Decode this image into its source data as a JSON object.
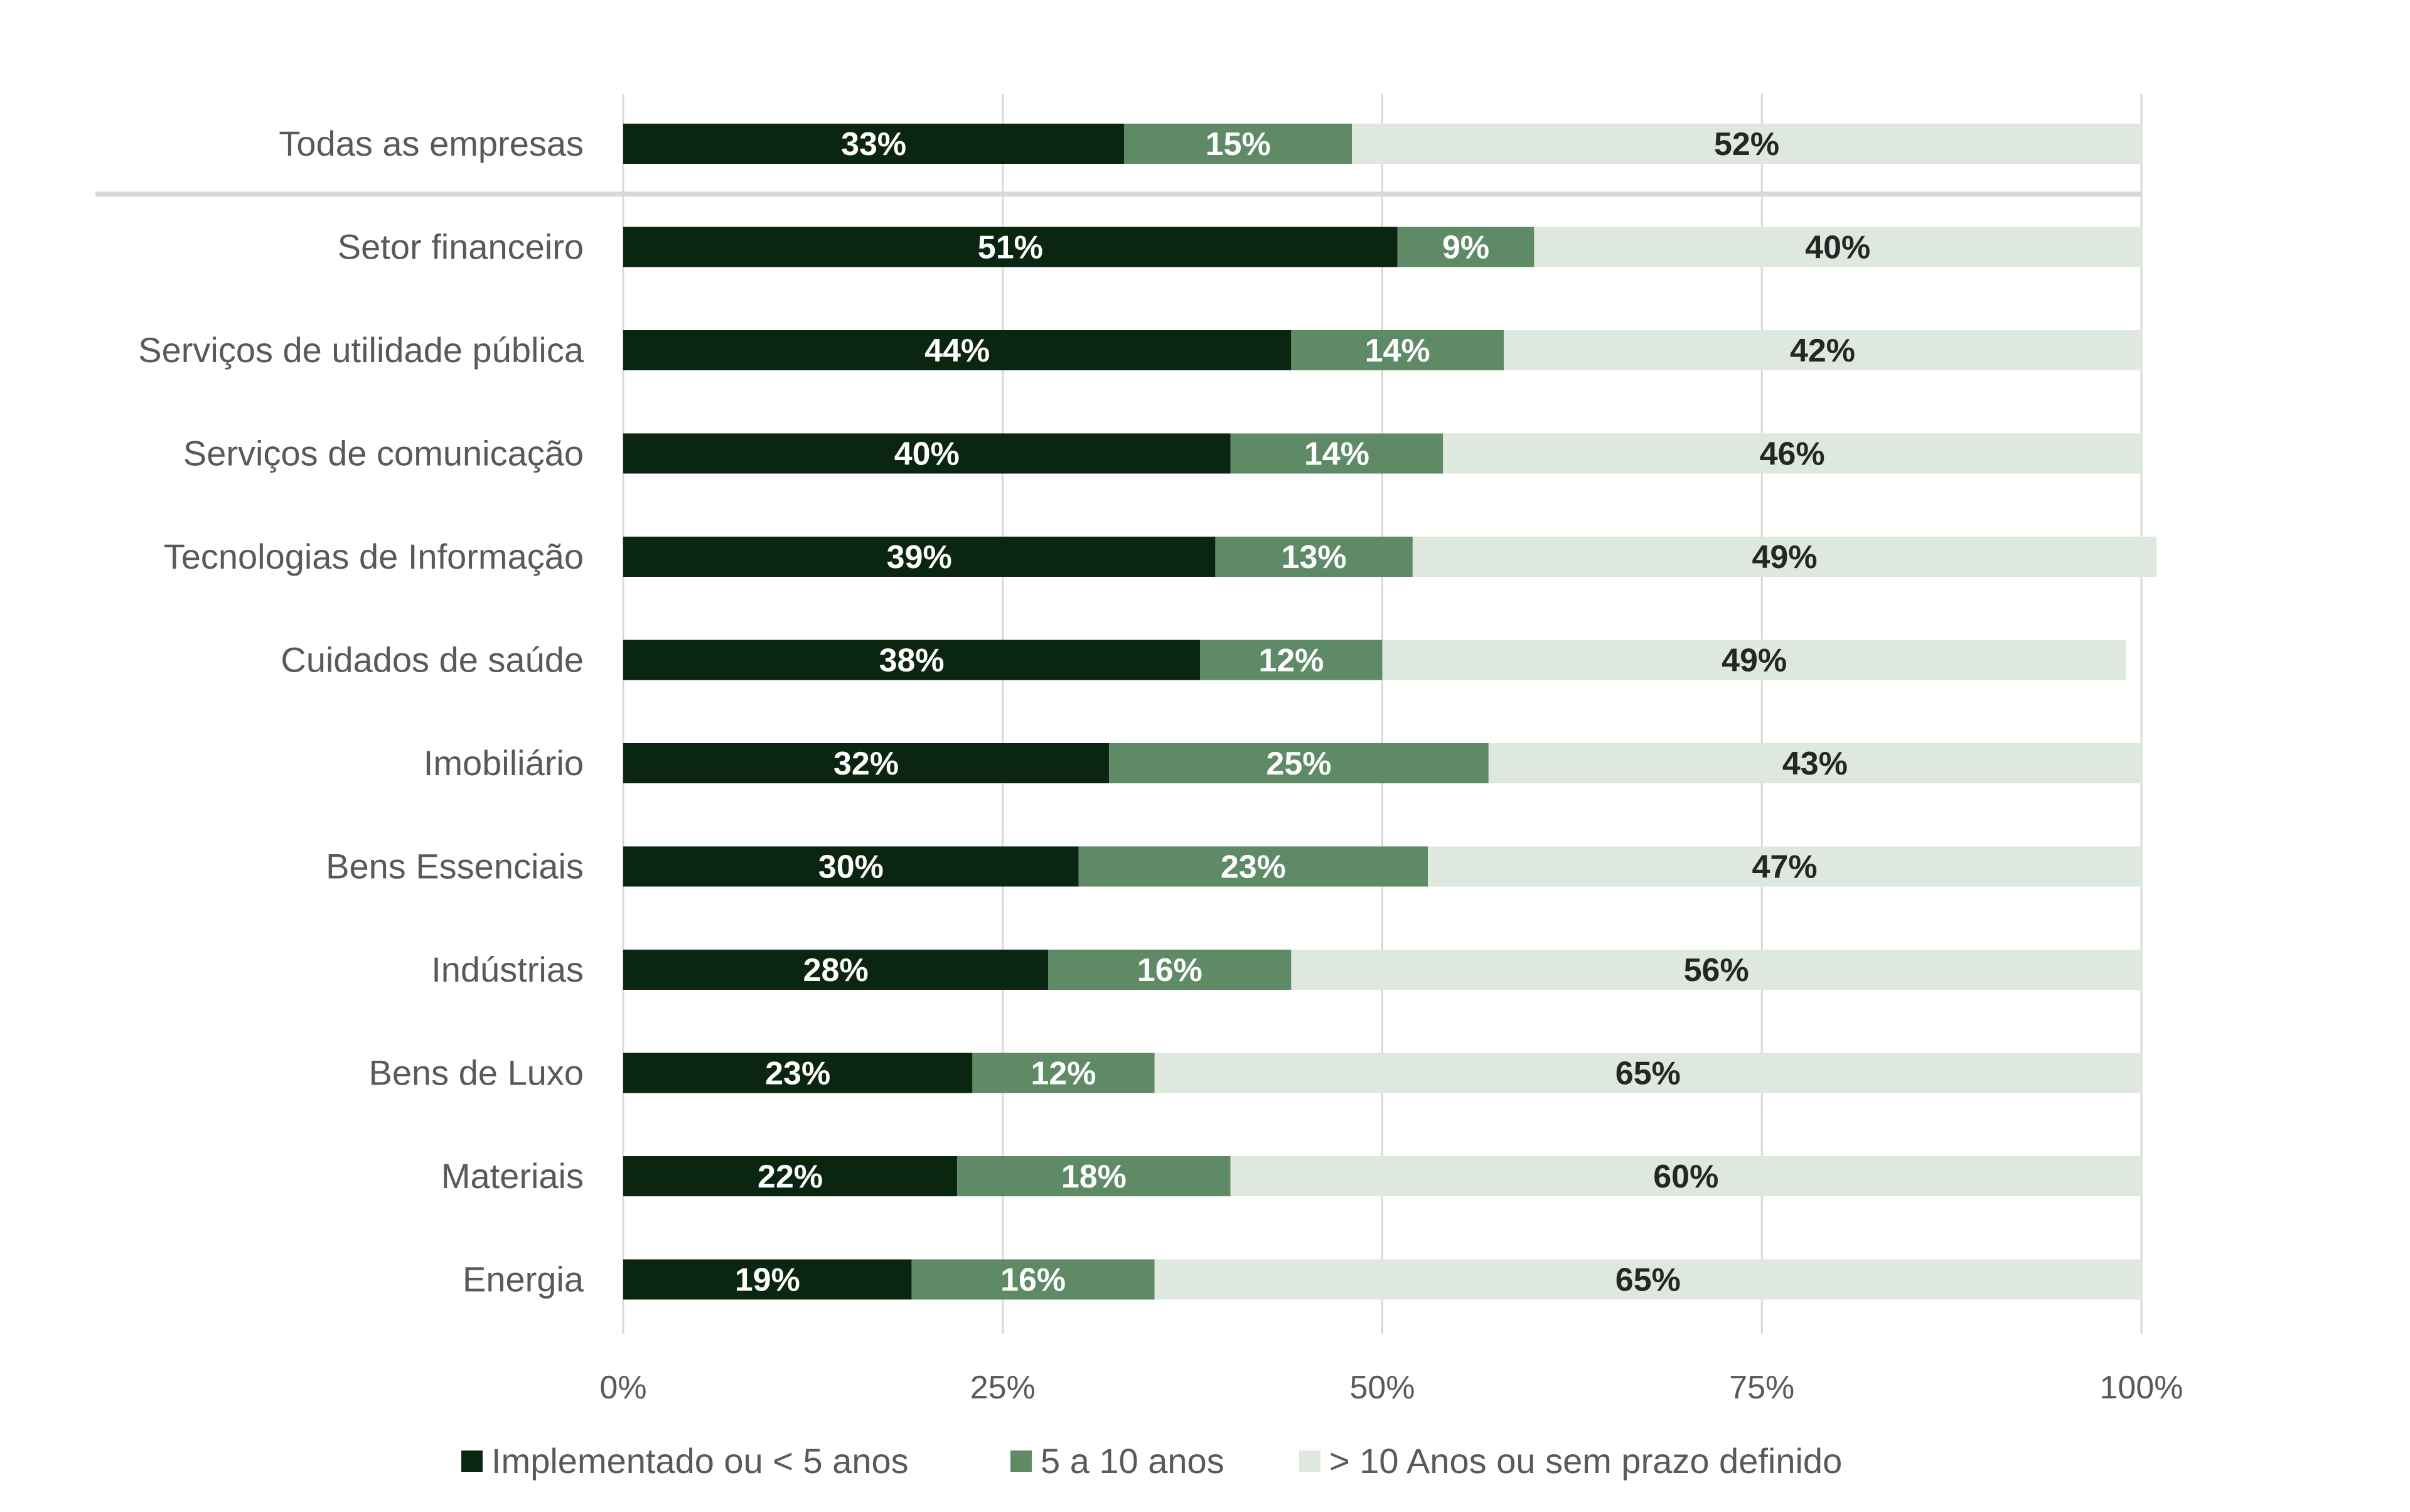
{
  "chart_data": {
    "type": "bar",
    "orientation": "horizontal",
    "stacked": true,
    "title": "",
    "xlabel": "",
    "ylabel": "",
    "xlim": [
      0,
      100
    ],
    "x_ticks": [
      "0%",
      "25%",
      "50%",
      "75%",
      "100%"
    ],
    "grid": true,
    "legend_position": "bottom",
    "categories": [
      "Todas as empresas",
      "Setor financeiro",
      "Serviços de utilidade pública",
      "Serviços de comunicação",
      "Tecnologias de Informação",
      "Cuidados de saúde",
      "Imobiliário",
      "Bens Essenciais",
      "Indústrias",
      "Bens de Luxo",
      "Materiais",
      "Energia"
    ],
    "series": [
      {
        "name": "Implementado ou < 5 anos",
        "color": "#0b2610",
        "label_color": "#ffffff",
        "values": [
          33,
          51,
          44,
          40,
          39,
          38,
          32,
          30,
          28,
          23,
          22,
          19
        ],
        "labels": [
          "33%",
          "51%",
          "44%",
          "40%",
          "39%",
          "38%",
          "32%",
          "30%",
          "28%",
          "23%",
          "22%",
          "19%"
        ]
      },
      {
        "name": "5 a 10 anos",
        "color": "#5e8a66",
        "label_color": "#ffffff",
        "values": [
          15,
          9,
          14,
          14,
          13,
          12,
          25,
          23,
          16,
          12,
          18,
          16
        ],
        "labels": [
          "15%",
          "9%",
          "14%",
          "14%",
          "13%",
          "12%",
          "25%",
          "23%",
          "16%",
          "12%",
          "18%",
          "16%"
        ]
      },
      {
        "name": "> 10 Anos ou sem prazo definido",
        "color": "#dfe8df",
        "label_color": "#262626",
        "values": [
          52,
          40,
          42,
          46,
          49,
          49,
          43,
          47,
          56,
          65,
          60,
          65
        ],
        "labels": [
          "52%",
          "40%",
          "42%",
          "46%",
          "49%",
          "49%",
          "43%",
          "47%",
          "56%",
          "65%",
          "60%",
          "65%"
        ]
      }
    ],
    "separator_after_category": "Todas as empresas",
    "colors": {
      "grid": "#d9d9d9",
      "separator": "#d9d9d9",
      "text": "#595959"
    }
  }
}
